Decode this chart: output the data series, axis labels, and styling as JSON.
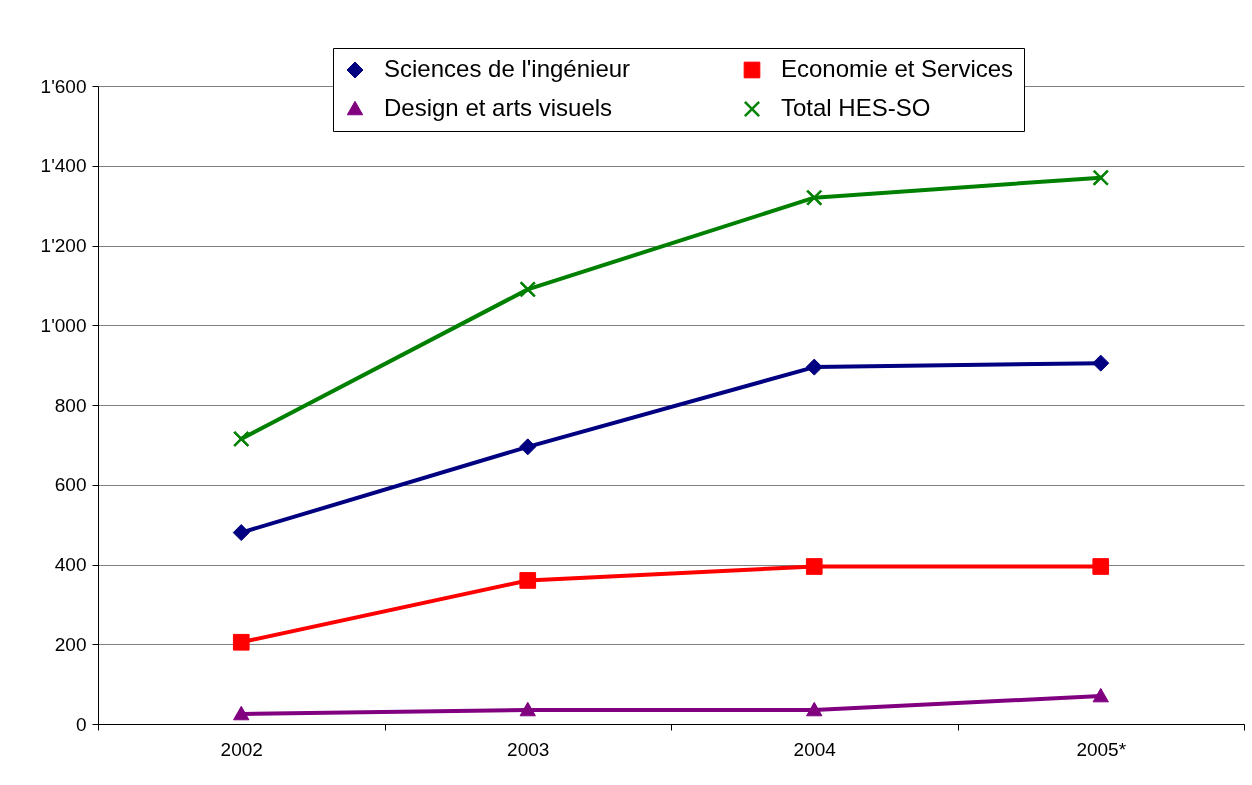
{
  "chart_data": {
    "type": "line",
    "categories": [
      "2002",
      "2003",
      "2004",
      "2005*"
    ],
    "series": [
      {
        "name": "Sciences de l'ingénieur",
        "color": "#000080",
        "marker": "diamond",
        "values": [
          480,
          695,
          895,
          905
        ]
      },
      {
        "name": "Economie et Services",
        "color": "#ff0000",
        "marker": "square",
        "values": [
          205,
          360,
          395,
          395
        ]
      },
      {
        "name": "Design et arts visuels",
        "color": "#800080",
        "marker": "triangle",
        "values": [
          25,
          35,
          35,
          70
        ]
      },
      {
        "name": "Total HES-SO",
        "color": "#008000",
        "marker": "cross",
        "values": [
          715,
          1090,
          1320,
          1370
        ]
      }
    ],
    "ylim": [
      0,
      1600
    ],
    "yticks": [
      0,
      200,
      400,
      600,
      800,
      {
        "value": 1000,
        "label": "1'000"
      },
      {
        "value": 1200,
        "label": "1'200"
      },
      {
        "value": 1400,
        "label": "1'400"
      },
      {
        "value": 1600,
        "label": "1'600"
      }
    ],
    "grid": "y",
    "legend": "top"
  }
}
